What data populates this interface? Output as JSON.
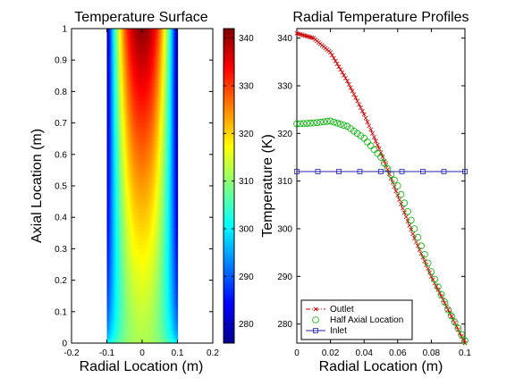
{
  "chart_data": [
    {
      "type": "heatmap",
      "title": "Temperature Surface",
      "xlabel": "Radial Location (m)",
      "ylabel": "Axial Location (m)",
      "xlim": [
        -0.2,
        0.2
      ],
      "ylim": [
        0,
        1
      ],
      "x_ticks": [
        -0.2,
        -0.1,
        0,
        0.1,
        0.2
      ],
      "y_ticks": [
        0,
        0.1,
        0.2,
        0.3,
        0.4,
        0.5,
        0.6,
        0.7,
        0.8,
        0.9,
        1
      ],
      "data_extent_x": [
        -0.1,
        0.1
      ],
      "colormap": "jet",
      "colorbar": {
        "range": [
          276,
          342
        ],
        "ticks": [
          280,
          290,
          300,
          310,
          320,
          330,
          340
        ]
      },
      "summary_values": {
        "outlet_center": 341,
        "outlet_wall": 276,
        "inlet": 312
      }
    },
    {
      "type": "line",
      "title": "Radial Temperature Profiles",
      "xlabel": "Radial Location (m)",
      "ylabel": "Temperature (K)",
      "xlim": [
        0,
        0.1
      ],
      "ylim": [
        276,
        342
      ],
      "x_ticks": [
        0,
        0.02,
        0.04,
        0.06,
        0.08,
        0.1
      ],
      "y_ticks": [
        280,
        290,
        300,
        310,
        320,
        330,
        340
      ],
      "legend_position": "bottom-left",
      "series": [
        {
          "name": "Outlet",
          "color": "#cc0000",
          "marker": "x",
          "line": "dash-dot",
          "x": [
            0,
            0.01,
            0.02,
            0.03,
            0.04,
            0.05,
            0.06,
            0.07,
            0.08,
            0.09,
            0.1
          ],
          "y": [
            341,
            340,
            337,
            331,
            324,
            316,
            307,
            298,
            290,
            283,
            276
          ]
        },
        {
          "name": "Half Axial Location",
          "color": "#00b000",
          "marker": "o",
          "line": "none",
          "x": [
            0,
            0.01,
            0.02,
            0.03,
            0.04,
            0.05,
            0.06,
            0.07,
            0.08,
            0.09,
            0.1
          ],
          "y": [
            322,
            322.2,
            322.6,
            321.5,
            319,
            315,
            309,
            300,
            291,
            283,
            276.5
          ]
        },
        {
          "name": "Inlet",
          "color": "#2020b0",
          "marker": "s",
          "line": "solid",
          "x": [
            0,
            0.1
          ],
          "y": [
            312,
            312
          ]
        }
      ]
    }
  ]
}
